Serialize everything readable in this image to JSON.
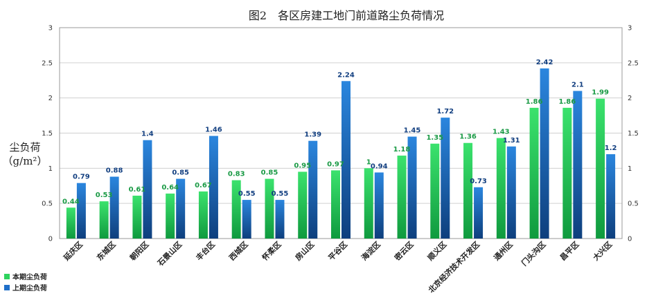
{
  "chart_data": {
    "type": "bar",
    "title": "图2　各区房建工地门前道路尘负荷情况",
    "ylabel_line1": "尘负荷",
    "ylabel_line2": "（g/m²）",
    "ylim": [
      0,
      3
    ],
    "yticks": [
      "0",
      "0.5",
      "1",
      "1.5",
      "2",
      "2.5",
      "3"
    ],
    "grid": true,
    "legend_position": "bottom-left",
    "categories": [
      "延庆区",
      "东城区",
      "朝阳区",
      "石景山区",
      "丰台区",
      "西城区",
      "怀柔区",
      "房山区",
      "平谷区",
      "海淀区",
      "密云区",
      "顺义区",
      "北京经济技术开发区",
      "通州区",
      "门头沟区",
      "昌平区",
      "大兴区"
    ],
    "series": [
      {
        "name": "本期尘负荷",
        "color": "#2ed35e",
        "values": [
          0.44,
          0.53,
          0.61,
          0.64,
          0.67,
          0.83,
          0.85,
          0.95,
          0.97,
          1,
          1.18,
          1.35,
          1.36,
          1.43,
          1.86,
          1.86,
          1.99
        ],
        "labels": [
          "0.44",
          "0.53",
          "0.61",
          "0.64",
          "0.67",
          "0.83",
          "0.85",
          "0.95",
          "0.97",
          "1",
          "1.18",
          "1.35",
          "1.36",
          "1.43",
          "1.86",
          "1.86",
          "1.99"
        ]
      },
      {
        "name": "上期尘负荷",
        "color": "#1f6fc9",
        "values": [
          0.79,
          0.88,
          1.4,
          0.85,
          1.46,
          0.55,
          0.55,
          1.39,
          2.24,
          0.94,
          1.45,
          1.72,
          0.73,
          1.31,
          2.42,
          2.1,
          1.2
        ],
        "labels": [
          "0.79",
          "0.88",
          "1.4",
          "0.85",
          "1.46",
          "0.55",
          "0.55",
          "1.39",
          "2.24",
          "0.94",
          "1.45",
          "1.72",
          "0.73",
          "1.31",
          "2.42",
          "2.1",
          "1.2"
        ]
      }
    ]
  }
}
